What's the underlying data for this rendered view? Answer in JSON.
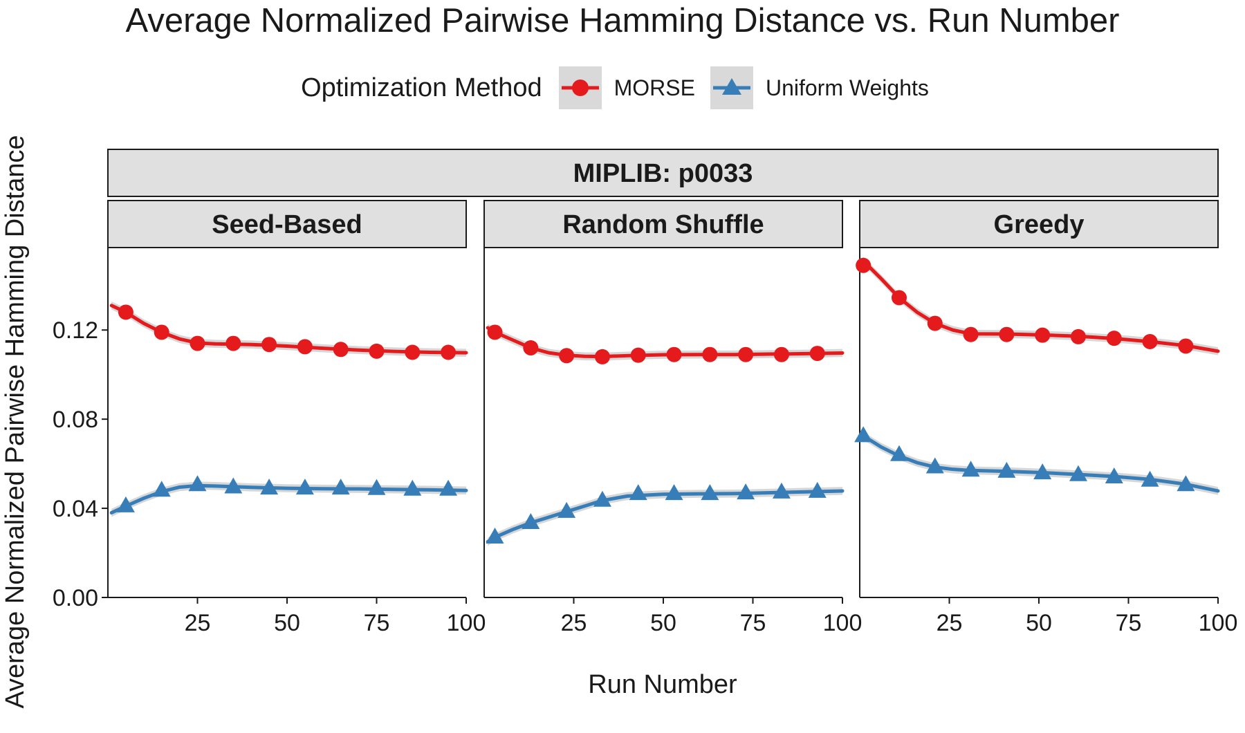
{
  "chart_data": {
    "type": "line",
    "title": "Average Normalized Pairwise Hamming Distance vs. Run Number",
    "xlabel": "Run Number",
    "ylabel": "Average Normalized Pairwise Hamming Distance",
    "xlim": [
      0,
      100
    ],
    "ylim": [
      0,
      0.157
    ],
    "x_ticks": [
      25,
      50,
      75,
      100
    ],
    "x_tick_labels": [
      "25",
      "50",
      "75",
      "100"
    ],
    "y_ticks": [
      0,
      0.04,
      0.08,
      0.12
    ],
    "y_tick_labels": [
      "0.00",
      "0.04",
      "0.08",
      "0.12"
    ],
    "facet_outer": "MIPLIB: p0033",
    "legend": {
      "title": "Optimization Method",
      "entries": [
        {
          "name": "MORSE",
          "color": "#e41a1c",
          "shape": "circle"
        },
        {
          "name": "Uniform Weights",
          "color": "#377eb8",
          "shape": "triangle"
        }
      ]
    },
    "panels": [
      {
        "name": "Seed-Based",
        "series": [
          {
            "name": "MORSE",
            "x": [
              5,
              15,
              25,
              35,
              45,
              55,
              65,
              75,
              85,
              95
            ],
            "values": [
              0.128,
              0.119,
              0.114,
              0.114,
              0.1135,
              0.1125,
              0.1113,
              0.1105,
              0.11,
              0.11
            ],
            "smooth_x": [
              1,
              5,
              10,
              15,
              20,
              25,
              30,
              40,
              50,
              60,
              70,
              80,
              90,
              100
            ],
            "smooth_y": [
              0.131,
              0.128,
              0.123,
              0.119,
              0.116,
              0.1142,
              0.1138,
              0.1135,
              0.1128,
              0.1118,
              0.111,
              0.1104,
              0.11,
              0.1098
            ]
          },
          {
            "name": "Uniform Weights",
            "x": [
              5,
              15,
              25,
              35,
              45,
              55,
              65,
              75,
              85,
              95
            ],
            "values": [
              0.041,
              0.048,
              0.0505,
              0.0495,
              0.049,
              0.049,
              0.049,
              0.0488,
              0.0485,
              0.0485
            ],
            "smooth_x": [
              1,
              5,
              10,
              15,
              20,
              25,
              30,
              40,
              50,
              60,
              70,
              80,
              90,
              100
            ],
            "smooth_y": [
              0.038,
              0.041,
              0.0445,
              0.0475,
              0.0495,
              0.0502,
              0.05,
              0.0494,
              0.049,
              0.0488,
              0.0487,
              0.0485,
              0.0483,
              0.048
            ]
          }
        ]
      },
      {
        "name": "Random Shuffle",
        "series": [
          {
            "name": "MORSE",
            "x": [
              3,
              13,
              23,
              33,
              43,
              53,
              63,
              73,
              83,
              93
            ],
            "values": [
              0.119,
              0.112,
              0.1085,
              0.108,
              0.1087,
              0.109,
              0.109,
              0.109,
              0.109,
              0.1095
            ],
            "smooth_x": [
              1,
              3,
              8,
              13,
              18,
              23,
              28,
              33,
              40,
              50,
              60,
              70,
              80,
              90,
              100
            ],
            "smooth_y": [
              0.121,
              0.119,
              0.1155,
              0.112,
              0.1098,
              0.1087,
              0.1082,
              0.1081,
              0.1085,
              0.1089,
              0.109,
              0.109,
              0.1092,
              0.1094,
              0.1097
            ]
          },
          {
            "name": "Uniform Weights",
            "x": [
              3,
              13,
              23,
              33,
              43,
              53,
              63,
              73,
              83,
              93
            ],
            "values": [
              0.027,
              0.0335,
              0.0385,
              0.0435,
              0.0465,
              0.0465,
              0.0465,
              0.0468,
              0.0472,
              0.0475
            ],
            "smooth_x": [
              1,
              3,
              8,
              13,
              18,
              23,
              28,
              33,
              40,
              50,
              60,
              70,
              80,
              90,
              100
            ],
            "smooth_y": [
              0.025,
              0.027,
              0.0305,
              0.0335,
              0.036,
              0.0385,
              0.041,
              0.0435,
              0.0455,
              0.0463,
              0.0465,
              0.0466,
              0.047,
              0.0474,
              0.0478
            ]
          }
        ]
      },
      {
        "name": "Greedy",
        "series": [
          {
            "name": "MORSE",
            "x": [
              1,
              11,
              21,
              31,
              41,
              51,
              61,
              71,
              81,
              91
            ],
            "values": [
              0.149,
              0.1345,
              0.123,
              0.118,
              0.118,
              0.1177,
              0.117,
              0.1163,
              0.1148,
              0.1128
            ],
            "smooth_x": [
              1,
              6,
              11,
              16,
              21,
              26,
              31,
              41,
              51,
              61,
              71,
              81,
              91,
              100
            ],
            "smooth_y": [
              0.151,
              0.143,
              0.1345,
              0.128,
              0.123,
              0.12,
              0.1183,
              0.1182,
              0.1178,
              0.1172,
              0.1162,
              0.1148,
              0.113,
              0.1105
            ]
          },
          {
            "name": "Uniform Weights",
            "x": [
              1,
              11,
              21,
              31,
              41,
              51,
              61,
              71,
              81,
              91
            ],
            "values": [
              0.0725,
              0.064,
              0.0585,
              0.057,
              0.0565,
              0.0558,
              0.055,
              0.054,
              0.0525,
              0.0505
            ],
            "smooth_x": [
              1,
              6,
              11,
              16,
              21,
              26,
              31,
              41,
              51,
              61,
              71,
              81,
              91,
              100
            ],
            "smooth_y": [
              0.0725,
              0.0675,
              0.0635,
              0.0605,
              0.0585,
              0.0575,
              0.057,
              0.0566,
              0.056,
              0.0552,
              0.0543,
              0.053,
              0.0508,
              0.0478
            ]
          }
        ]
      }
    ]
  }
}
